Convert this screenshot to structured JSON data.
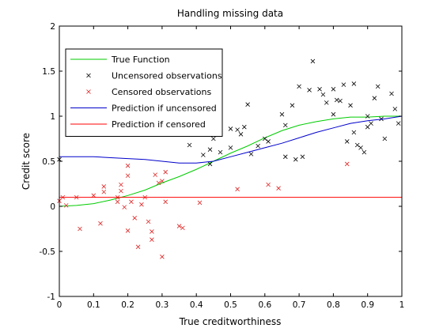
{
  "chart_data": {
    "type": "line",
    "title": "Handling missing data",
    "xlabel": "True creditworthiness",
    "ylabel": "Credit score",
    "xlim": [
      0,
      1
    ],
    "ylim": [
      -1,
      2
    ],
    "xticks": [
      0,
      0.1,
      0.2,
      0.3,
      0.4,
      0.5,
      0.6,
      0.7,
      0.8,
      0.9,
      1
    ],
    "xtick_labels": [
      "0",
      "0.1",
      "0.2",
      "0.3",
      "0.4",
      "0.5",
      "0.6",
      "0.7",
      "0.8",
      "0.9",
      "1"
    ],
    "yticks": [
      -1,
      -0.5,
      0,
      0.5,
      1,
      1.5,
      2
    ],
    "ytick_labels": [
      "-1",
      "-0.5",
      "0",
      "0.5",
      "1",
      "1.5",
      "2"
    ],
    "grid": false,
    "legend_position": "top-left",
    "series": [
      {
        "name": "True Function",
        "kind": "line",
        "color": "#00cc00",
        "x": [
          0,
          0.05,
          0.1,
          0.15,
          0.2,
          0.25,
          0.3,
          0.35,
          0.4,
          0.45,
          0.5,
          0.55,
          0.6,
          0.65,
          0.7,
          0.75,
          0.8,
          0.85,
          0.9,
          0.95,
          1
        ],
        "y": [
          0,
          0.01,
          0.03,
          0.07,
          0.12,
          0.18,
          0.26,
          0.33,
          0.41,
          0.5,
          0.59,
          0.67,
          0.76,
          0.84,
          0.9,
          0.94,
          0.97,
          0.99,
          0.99,
          1.0,
          1.0
        ]
      },
      {
        "name": "Uncensored observations",
        "kind": "scatter",
        "marker": "x",
        "color": "#000000",
        "x": [
          0.0,
          0.38,
          0.42,
          0.44,
          0.44,
          0.45,
          0.47,
          0.5,
          0.5,
          0.52,
          0.53,
          0.54,
          0.55,
          0.56,
          0.58,
          0.6,
          0.61,
          0.65,
          0.66,
          0.66,
          0.68,
          0.69,
          0.7,
          0.71,
          0.73,
          0.74,
          0.76,
          0.77,
          0.78,
          0.8,
          0.8,
          0.81,
          0.82,
          0.83,
          0.84,
          0.85,
          0.86,
          0.86,
          0.87,
          0.88,
          0.89,
          0.9,
          0.9,
          0.91,
          0.92,
          0.93,
          0.94,
          0.95,
          0.97,
          0.98,
          0.99
        ],
        "y": [
          0.52,
          0.68,
          0.57,
          0.47,
          0.63,
          0.75,
          0.6,
          0.65,
          0.86,
          0.85,
          0.8,
          0.88,
          1.13,
          0.58,
          0.67,
          0.75,
          0.72,
          1.02,
          0.55,
          0.9,
          1.12,
          0.52,
          1.33,
          0.55,
          1.29,
          1.61,
          1.3,
          1.24,
          1.15,
          1.02,
          1.3,
          1.18,
          1.17,
          1.35,
          0.72,
          1.12,
          1.36,
          0.82,
          0.68,
          0.65,
          0.6,
          1.0,
          0.88,
          0.92,
          1.2,
          1.33,
          0.97,
          0.75,
          1.25,
          1.08,
          0.92
        ]
      },
      {
        "name": "Censored observations",
        "kind": "scatter",
        "marker": "x",
        "color": "#dd2222",
        "x": [
          0.0,
          0.01,
          0.02,
          0.05,
          0.06,
          0.1,
          0.12,
          0.13,
          0.13,
          0.17,
          0.17,
          0.18,
          0.18,
          0.19,
          0.2,
          0.2,
          0.2,
          0.21,
          0.22,
          0.23,
          0.24,
          0.25,
          0.26,
          0.27,
          0.27,
          0.28,
          0.29,
          0.3,
          0.3,
          0.31,
          0.31,
          0.35,
          0.36,
          0.41,
          0.52,
          0.61,
          0.64,
          0.84
        ],
        "y": [
          0.06,
          0.1,
          0.01,
          0.1,
          -0.25,
          0.12,
          -0.19,
          0.16,
          0.22,
          0.05,
          0.1,
          0.17,
          0.24,
          -0.01,
          0.34,
          0.45,
          -0.27,
          0.05,
          -0.13,
          -0.45,
          0.02,
          0.1,
          -0.17,
          -0.37,
          -0.28,
          0.35,
          0.26,
          0.28,
          -0.56,
          0.05,
          0.38,
          -0.22,
          -0.24,
          0.04,
          0.19,
          0.24,
          0.2,
          0.47
        ]
      },
      {
        "name": "Prediction if uncensored",
        "kind": "line",
        "color": "#0000cc",
        "x": [
          0,
          0.05,
          0.1,
          0.15,
          0.2,
          0.25,
          0.3,
          0.35,
          0.4,
          0.45,
          0.5,
          0.55,
          0.6,
          0.65,
          0.7,
          0.75,
          0.8,
          0.85,
          0.9,
          0.95,
          1
        ],
        "y": [
          0.55,
          0.55,
          0.55,
          0.54,
          0.53,
          0.52,
          0.5,
          0.48,
          0.48,
          0.5,
          0.55,
          0.6,
          0.65,
          0.7,
          0.76,
          0.82,
          0.87,
          0.92,
          0.95,
          0.97,
          1.0
        ]
      },
      {
        "name": "Prediction if censored",
        "kind": "line",
        "color": "#ff0000",
        "x": [
          0,
          1
        ],
        "y": [
          0.1,
          0.1
        ]
      }
    ]
  }
}
